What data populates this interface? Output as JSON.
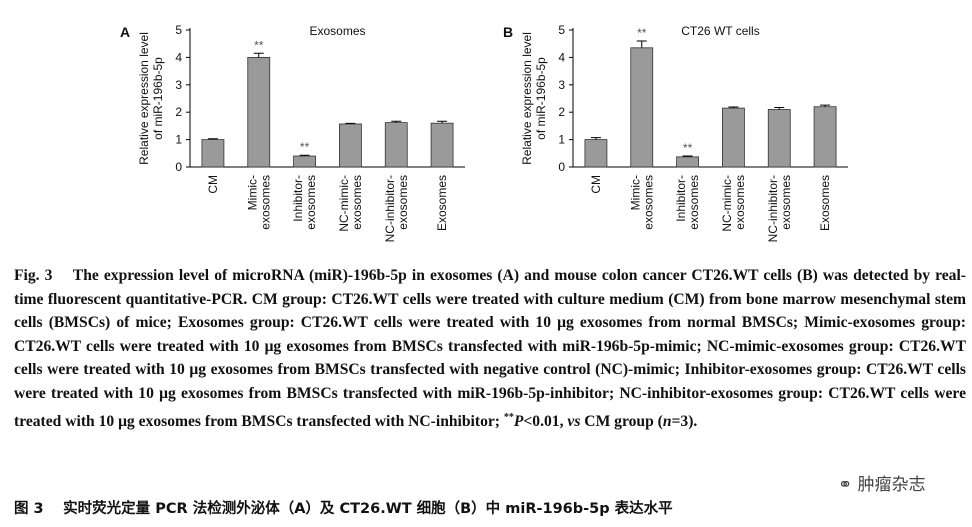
{
  "chart_data": [
    {
      "type": "bar",
      "panel": "A",
      "title": "Exosomes",
      "ylabel": [
        "Relative expression level",
        "of miR-196b-5p"
      ],
      "categories": [
        [
          "CM"
        ],
        [
          "Mimic-",
          "exosomes"
        ],
        [
          "Inhibitor-",
          "exosomes"
        ],
        [
          "NC-mimic-",
          "exosomes"
        ],
        [
          "NC-inhibitor-",
          "exosomes"
        ],
        [
          "Exosomes"
        ]
      ],
      "values": [
        1.0,
        4.0,
        0.4,
        1.57,
        1.62,
        1.6
      ],
      "errors": [
        0.03,
        0.15,
        0.03,
        0.02,
        0.05,
        0.07
      ],
      "annotations": [
        {
          "index": 1,
          "text": "**"
        },
        {
          "index": 2,
          "text": "**"
        }
      ],
      "color": "#9a9a9a",
      "ylim": [
        0,
        5
      ],
      "yticks": [
        0,
        1,
        2,
        3,
        4,
        5
      ]
    },
    {
      "type": "bar",
      "panel": "B",
      "title": "CT26 WT cells",
      "ylabel": [
        "Relative expression level",
        "of miR-196b-5p"
      ],
      "categories": [
        [
          "CM"
        ],
        [
          "Mimic-",
          "exosomes"
        ],
        [
          "Inhibitor-",
          "exosomes"
        ],
        [
          "NC-mimic-",
          "exosomes"
        ],
        [
          "NC-inhibitor-",
          "exosomes"
        ],
        [
          "Exosomes"
        ]
      ],
      "values": [
        1.0,
        4.35,
        0.37,
        2.15,
        2.1,
        2.2
      ],
      "errors": [
        0.07,
        0.25,
        0.03,
        0.04,
        0.07,
        0.06
      ],
      "annotations": [
        {
          "index": 1,
          "text": "**"
        },
        {
          "index": 2,
          "text": "**"
        }
      ],
      "color": "#9a9a9a",
      "ylim": [
        0,
        5
      ],
      "yticks": [
        0,
        1,
        2,
        3,
        4,
        5
      ]
    }
  ],
  "caption": {
    "segments": [
      "Fig. 3  The expression level of microRNA (miR)-196b-5p in exosomes (A) and mouse colon cancer CT26.WT cells (B) was detected by real-time fluorescent quantitative-PCR. CM group: CT26.WT cells were treated with culture medium (CM) from bone marrow mesenchymal stem cells (BMSCs) of mice; Exosomes group: CT26.WT cells were treated with 10 μg exosomes from normal BMSCs; Mimic-exosomes group: CT26.WT cells were treated with 10 μg exosomes from BMSCs transfected with miR-196b-5p-mimic; NC-mimic-exosomes group: CT26.WT cells were treated with 10 μg exosomes from BMSCs transfected with negative control (NC)-mimic; Inhibitor-exosomes group: CT26.WT cells were treated with 10 μg exosomes from BMSCs transfected with miR-196b-5p-inhibitor; NC-inhibitor-exosomes group: CT26.WT cells were treated with 10 μg exosomes from BMSCs transfected with NC-inhibitor; ",
      "**",
      "P",
      "<0.01, ",
      "vs",
      " CM group (",
      "n",
      "=3)."
    ],
    "chinese": "图 3  实时荧光定量 PCR 法检测外泌体（A）及 CT26.WT 细胞（B）中 miR-196b-5p 表达水平"
  },
  "watermark": "肿瘤杂志"
}
